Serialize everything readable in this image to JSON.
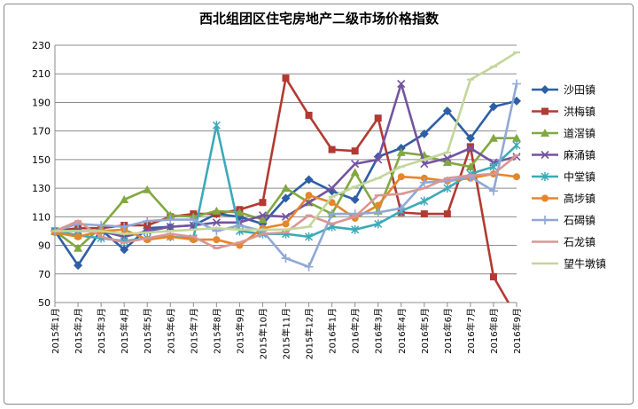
{
  "chart_data": {
    "type": "line",
    "title": "西北组团区住宅房地产二级市场价格指数",
    "xlabel": "",
    "ylabel": "",
    "ylim": [
      50,
      230
    ],
    "yticks": [
      50,
      70,
      90,
      110,
      130,
      150,
      170,
      190,
      210,
      230
    ],
    "grid": "horizontal",
    "legend": "right",
    "categories": [
      "2015年1月",
      "2015年2月",
      "2015年3月",
      "2015年4月",
      "2015年5月",
      "2015年6月",
      "2015年7月",
      "2015年8月",
      "2015年9月",
      "2015年10月",
      "2015年11月",
      "2015年12月",
      "2016年1月",
      "2016年2月",
      "2016年3月",
      "2016年4月",
      "2016年5月",
      "2016年6月",
      "2016年7月",
      "2016年8月",
      "2016年9月"
    ],
    "series": [
      {
        "name": "沙田镇",
        "color": "#2E5FA5",
        "marker": "diamond",
        "values": [
          100,
          76,
          101,
          87,
          102,
          103,
          104,
          112,
          110,
          105,
          123,
          136,
          128,
          122,
          152,
          158,
          168,
          184,
          165,
          187,
          191
        ]
      },
      {
        "name": "洪梅镇",
        "color": "#B23A32",
        "marker": "square",
        "values": [
          100,
          102,
          102,
          104,
          104,
          110,
          112,
          112,
          115,
          120,
          207,
          181,
          157,
          156,
          179,
          113,
          112,
          112,
          159,
          68,
          40
        ]
      },
      {
        "name": "道滘镇",
        "color": "#82A840",
        "marker": "triangle",
        "values": [
          100,
          88,
          103,
          122,
          129,
          111,
          110,
          114,
          113,
          108,
          130,
          120,
          112,
          141,
          114,
          155,
          153,
          148,
          145,
          165,
          165
        ]
      },
      {
        "name": "麻涌镇",
        "color": "#7553A0",
        "marker": "x",
        "values": [
          100,
          100,
          100,
          96,
          100,
          103,
          104,
          106,
          106,
          111,
          110,
          120,
          130,
          147,
          150,
          203,
          147,
          151,
          158,
          148,
          152
        ]
      },
      {
        "name": "中堂镇",
        "color": "#3DA9B8",
        "marker": "star",
        "values": [
          100,
          97,
          95,
          93,
          95,
          96,
          95,
          174,
          100,
          98,
          98,
          96,
          103,
          101,
          105,
          114,
          121,
          130,
          140,
          145,
          160
        ]
      },
      {
        "name": "高埗镇",
        "color": "#E5862B",
        "marker": "circle",
        "values": [
          99,
          96,
          100,
          101,
          94,
          96,
          94,
          94,
          90,
          102,
          105,
          125,
          120,
          109,
          118,
          138,
          137,
          135,
          137,
          140,
          138
        ]
      },
      {
        "name": "石碣镇",
        "color": "#8FA8D6",
        "marker": "plus",
        "values": [
          100,
          105,
          104,
          103,
          107,
          108,
          108,
          100,
          104,
          100,
          81,
          75,
          112,
          112,
          113,
          116,
          134,
          135,
          138,
          128,
          203
        ]
      },
      {
        "name": "石龙镇",
        "color": "#D99694",
        "marker": "dash",
        "values": [
          100,
          107,
          96,
          92,
          95,
          98,
          96,
          88,
          92,
          98,
          99,
          111,
          105,
          110,
          125,
          126,
          130,
          137,
          139,
          140,
          153
        ]
      },
      {
        "name": "望牛墩镇",
        "color": "#C3D69B",
        "marker": "dash",
        "values": [
          100,
          100,
          100,
          98,
          99,
          100,
          101,
          102,
          101,
          101,
          101,
          103,
          124,
          131,
          137,
          145,
          150,
          155,
          206,
          215,
          225
        ]
      }
    ]
  }
}
